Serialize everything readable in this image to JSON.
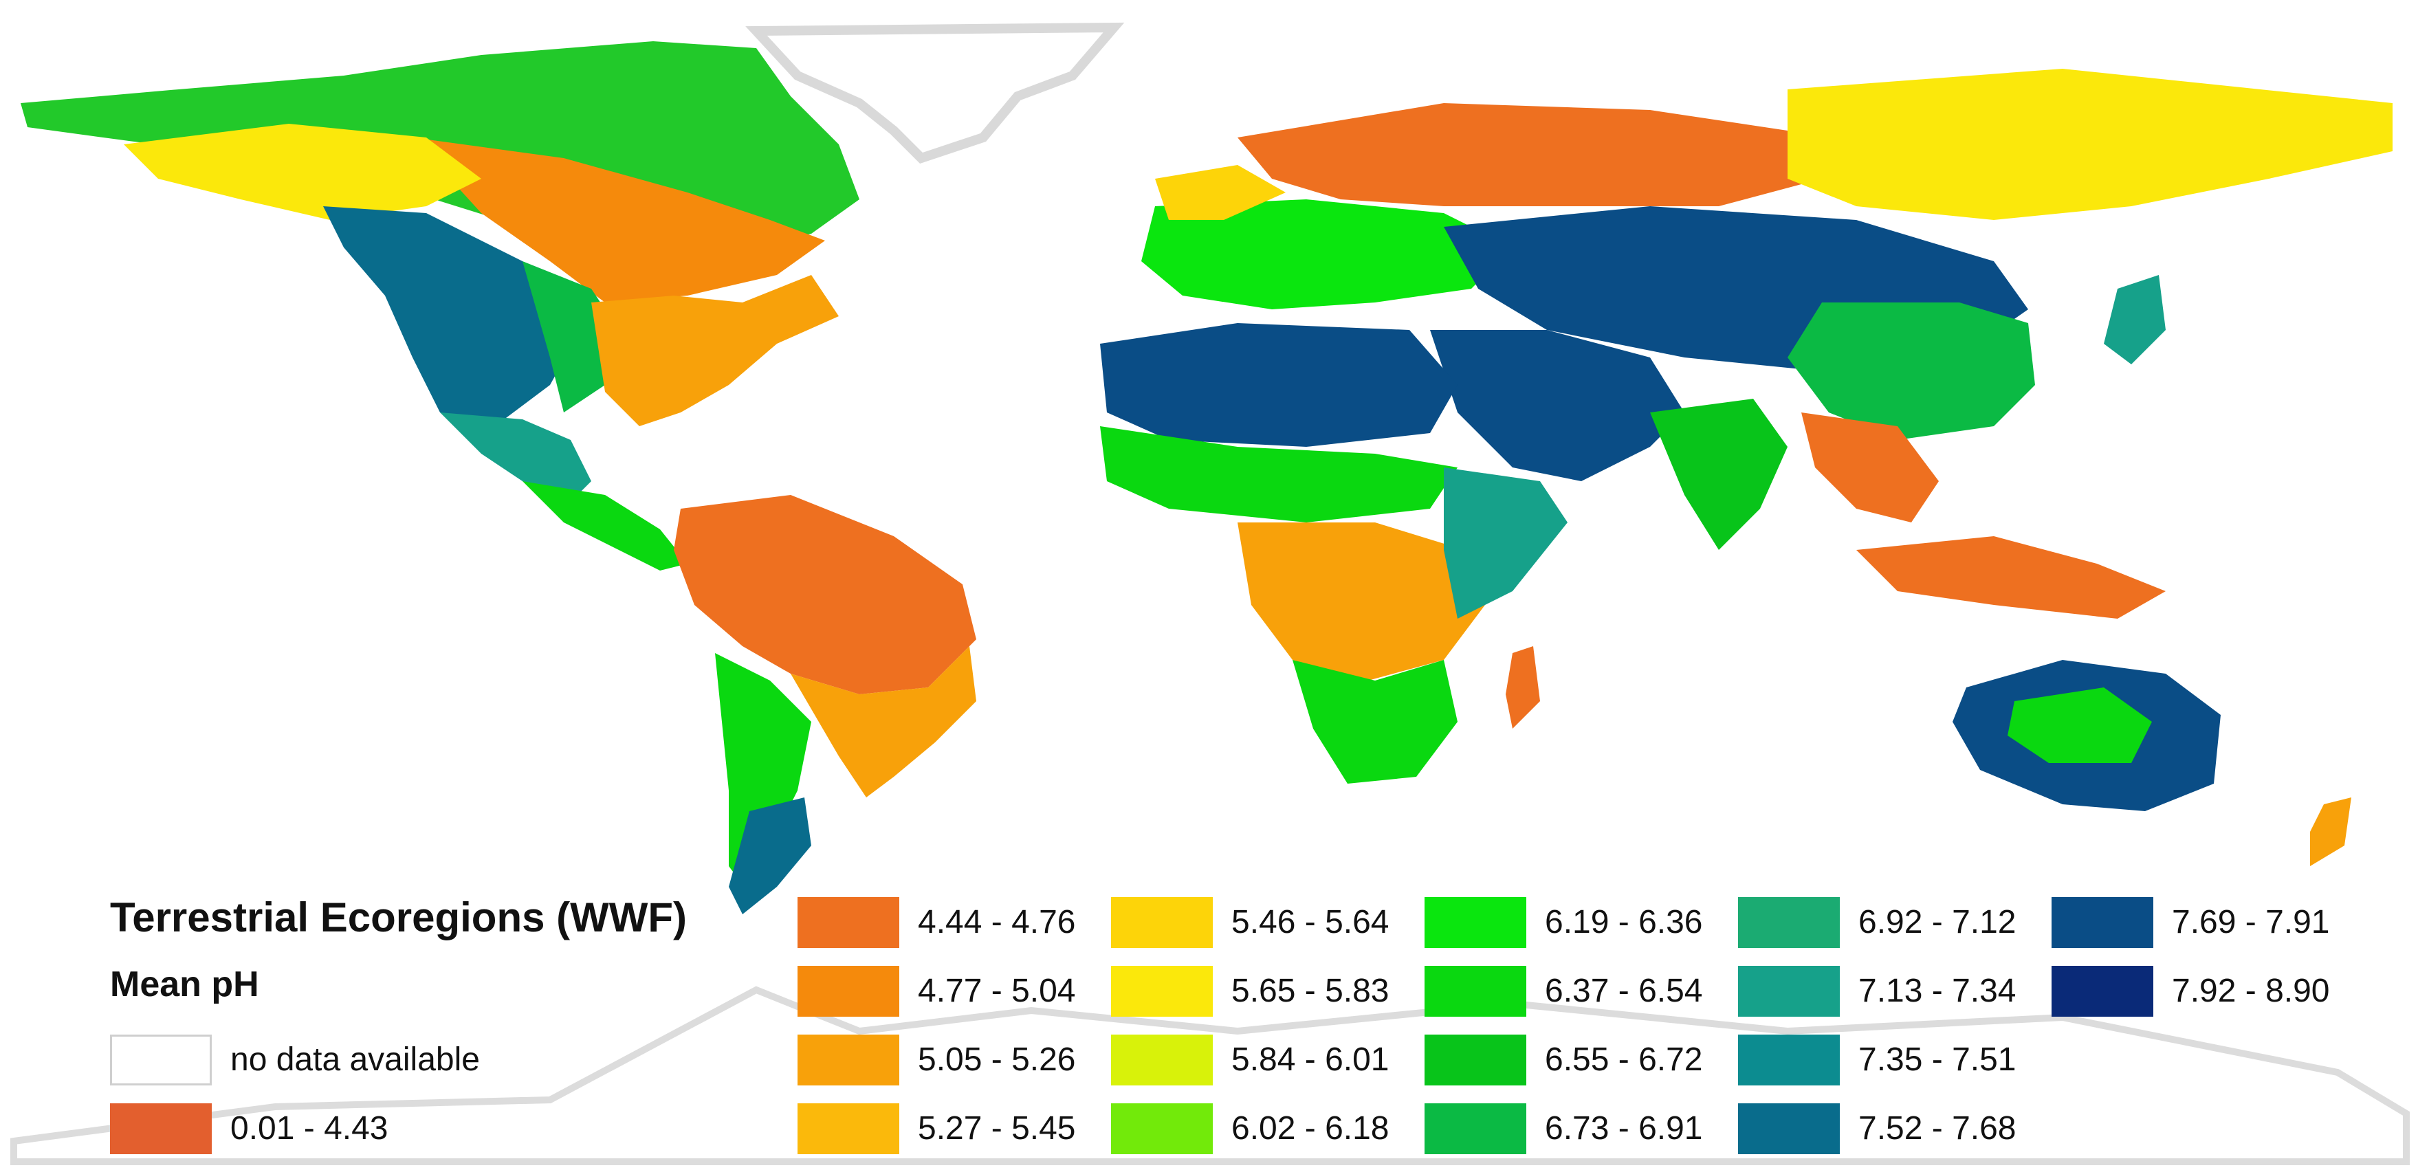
{
  "legend": {
    "title": "Terrestrial Ecoregions (WWF)",
    "subtitle": "Mean pH",
    "no_data_label": "no data available",
    "no_data_color": "#ffffff",
    "classes": [
      {
        "label": "0.01 - 4.43",
        "color": "#e35f2e"
      },
      {
        "label": "4.44 - 4.76",
        "color": "#ee7020"
      },
      {
        "label": "4.77 - 5.04",
        "color": "#f58a0c"
      },
      {
        "label": "5.05 - 5.26",
        "color": "#f8a10a"
      },
      {
        "label": "5.27 - 5.45",
        "color": "#fbb90b"
      },
      {
        "label": "5.46 - 5.64",
        "color": "#fdd409"
      },
      {
        "label": "5.65 - 5.83",
        "color": "#fbe80b"
      },
      {
        "label": "5.84 - 6.01",
        "color": "#d8f20a"
      },
      {
        "label": "6.02 - 6.18",
        "color": "#72ea0a"
      },
      {
        "label": "6.19 - 6.36",
        "color": "#0ae60e"
      },
      {
        "label": "6.37 - 6.54",
        "color": "#0ad810"
      },
      {
        "label": "6.55 - 6.72",
        "color": "#08c41a"
      },
      {
        "label": "6.73 - 6.91",
        "color": "#0bba44"
      },
      {
        "label": "6.92 - 7.12",
        "color": "#1bab72"
      },
      {
        "label": "7.13 - 7.34",
        "color": "#16a18a"
      },
      {
        "label": "7.35 - 7.51",
        "color": "#0c8c90"
      },
      {
        "label": "7.52 - 7.68",
        "color": "#096c8c"
      },
      {
        "label": "7.69 - 7.91",
        "color": "#0a4d86"
      },
      {
        "label": "7.92 - 8.90",
        "color": "#0a2a78"
      }
    ]
  }
}
